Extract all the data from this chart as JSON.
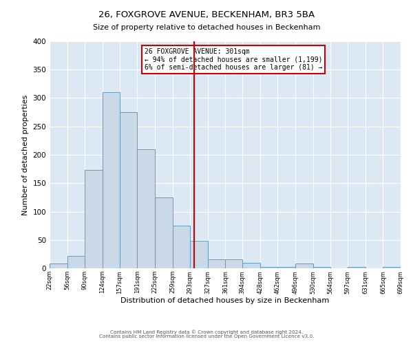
{
  "title": "26, FOXGROVE AVENUE, BECKENHAM, BR3 5BA",
  "subtitle": "Size of property relative to detached houses in Beckenham",
  "xlabel": "Distribution of detached houses by size in Beckenham",
  "ylabel": "Number of detached properties",
  "bin_edges": [
    22,
    56,
    90,
    124,
    157,
    191,
    225,
    259,
    293,
    327,
    361,
    394,
    428,
    462,
    496,
    530,
    564,
    597,
    631,
    665,
    699
  ],
  "bar_heights": [
    8,
    22,
    173,
    310,
    275,
    210,
    125,
    75,
    48,
    16,
    16,
    10,
    2,
    2,
    8,
    2,
    0,
    3,
    0,
    3
  ],
  "bar_facecolor": "#c9d9e8",
  "bar_edgecolor": "#6699bb",
  "property_line_x": 301,
  "property_line_color": "#cc0000",
  "annotation_title": "26 FOXGROVE AVENUE: 301sqm",
  "annotation_line1": "← 94% of detached houses are smaller (1,199)",
  "annotation_line2": "6% of semi-detached houses are larger (81) →",
  "annotation_box_color": "#cc0000",
  "ylim": [
    0,
    400
  ],
  "yticks": [
    0,
    50,
    100,
    150,
    200,
    250,
    300,
    350,
    400
  ],
  "background_color": "#dce9f5",
  "footer1": "Contains HM Land Registry data © Crown copyright and database right 2024.",
  "footer2": "Contains public sector information licensed under the Open Government Licence v3.0."
}
